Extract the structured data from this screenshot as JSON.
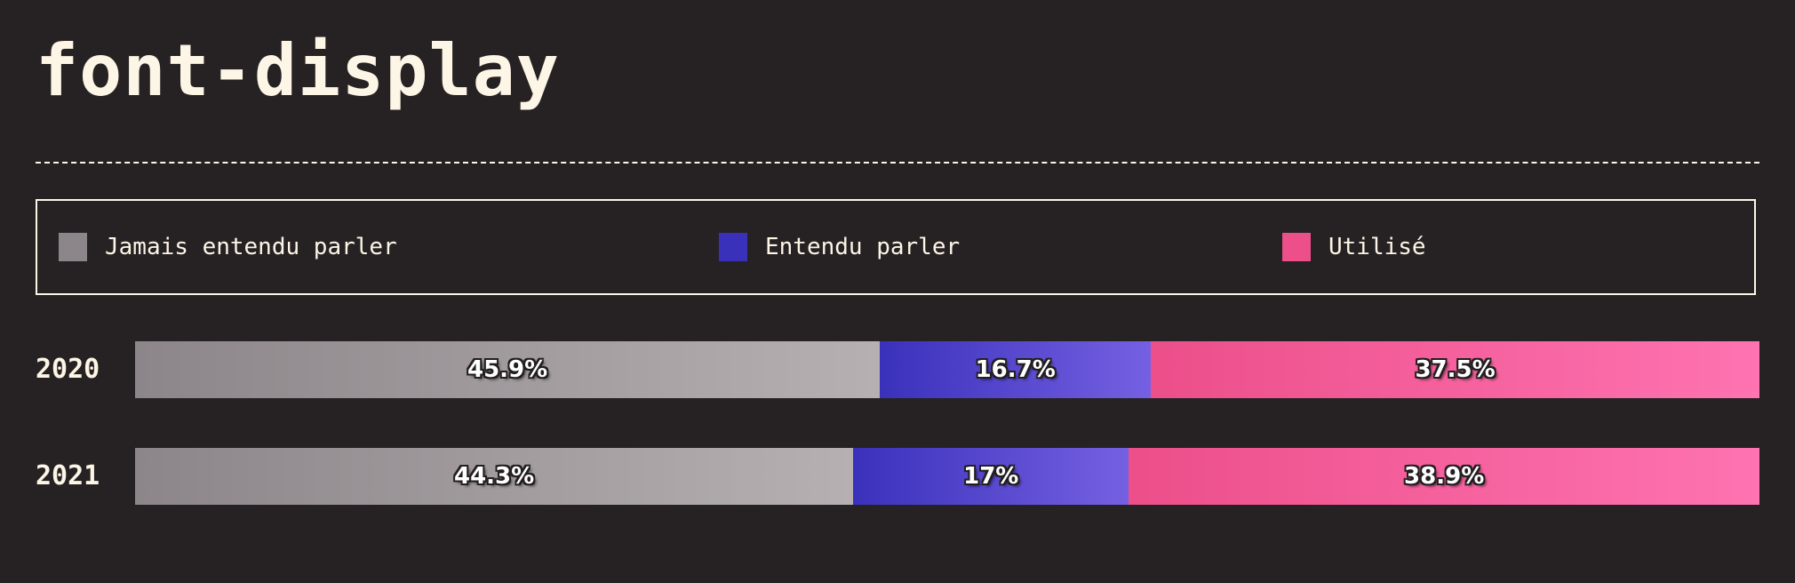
{
  "title": "font-display",
  "colors": {
    "background": "#262224",
    "text": "#fdf5e6",
    "never_heard_from": "#8c8589",
    "never_heard_to": "#b6b0b2",
    "heard_from": "#3a31bb",
    "heard_to": "#7560e2",
    "used_from": "#ec4f8a",
    "used_to": "#fe73b1"
  },
  "legend": {
    "items": [
      {
        "label": "Jamais entendu parler",
        "color": "#8c8589"
      },
      {
        "label": "Entendu parler",
        "color": "#3a31bb"
      },
      {
        "label": "Utilisé",
        "color": "#ec4f8a"
      }
    ]
  },
  "chart_data": {
    "type": "bar",
    "orientation": "horizontal-stacked",
    "title": "font-display",
    "categories": [
      "2020",
      "2021"
    ],
    "series": [
      {
        "name": "Jamais entendu parler",
        "values": [
          45.9,
          44.3
        ],
        "labels": [
          "45.9%",
          "44.3%"
        ]
      },
      {
        "name": "Entendu parler",
        "values": [
          16.7,
          17
        ],
        "labels": [
          "16.7%",
          "17%"
        ]
      },
      {
        "name": "Utilisé",
        "values": [
          37.5,
          38.9
        ],
        "labels": [
          "37.5%",
          "38.9%"
        ]
      }
    ],
    "legend_position": "top",
    "grid": false,
    "xlim": [
      0,
      100
    ]
  }
}
